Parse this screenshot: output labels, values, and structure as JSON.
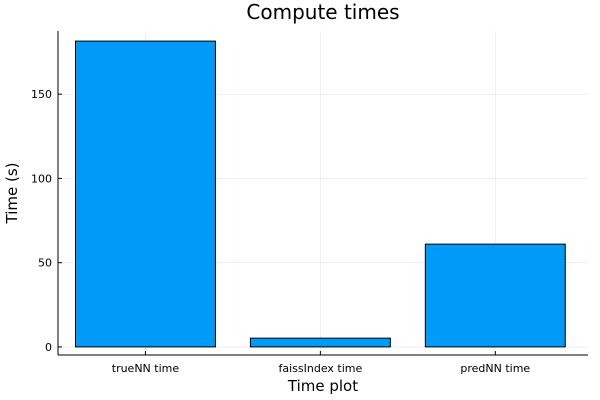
{
  "chart_data": {
    "type": "bar",
    "title": "Compute times",
    "xlabel": "Time plot",
    "ylabel": "Time (s)",
    "categories": [
      "trueNN time",
      "faissIndex time",
      "predNN time"
    ],
    "values": [
      181.5,
      5.2,
      61.0
    ],
    "ylim": [
      -4.8,
      187.5
    ],
    "yticks": [
      0,
      50,
      100,
      150
    ],
    "grid": true,
    "legend": "none",
    "bar_color": "#009AF9"
  }
}
